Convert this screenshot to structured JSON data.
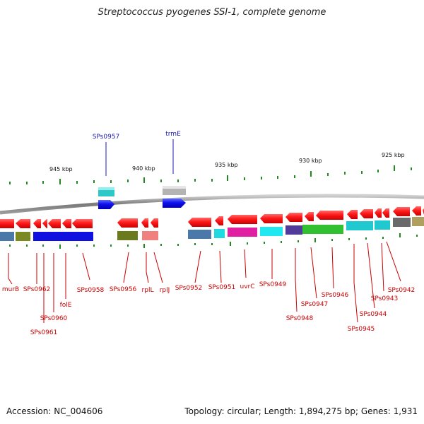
{
  "title": "Streptococcus pyogenes SSI-1, complete genome",
  "accession": "Accession: NC_004606",
  "summary": "Topology: circular; Length: 1,894,275 bp; Genes: 1,931",
  "colors": {
    "backbone": "#8a8a8a",
    "tick": "#1f8a1f",
    "label_top": "#1a1ab4",
    "label_bottom": "#cc0000",
    "gene_red": "#ff1a1a"
  },
  "scale_labels": [
    "945 kbp",
    "940 kbp",
    "935 kbp",
    "930 kbp",
    "925 kbp"
  ],
  "top_labels": [
    "SPs0957",
    "trmE"
  ],
  "bottom_labels": [
    "murB",
    "SPs0962",
    "SPs0961",
    "SPs0960",
    "folE",
    "SPs0958",
    "SPs0956",
    "rplL",
    "rplJ",
    "SPs0952",
    "SPs0951",
    "uvrC",
    "SPs0949",
    "SPs0948",
    "SPs0947",
    "SPs0946",
    "SPs0945",
    "SPs0944",
    "SPs0943",
    "SPs0942"
  ]
}
